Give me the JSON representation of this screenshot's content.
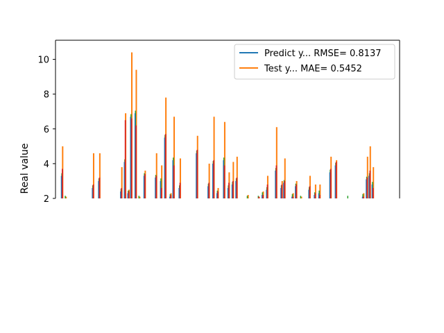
{
  "chart_data": {
    "type": "line",
    "xlabel": "",
    "ylabel": "Real value",
    "ylim": [
      2,
      11.1
    ],
    "yticks": [
      2,
      4,
      6,
      8,
      10
    ],
    "xlim": [
      0,
      100
    ],
    "grid": false,
    "legend_position": "top-right",
    "colors": {
      "predict": "#1f77b4",
      "test": "#ff7f0e",
      "series3": "#2ca02c",
      "series4": "#d62728"
    },
    "legend": [
      {
        "label": "Predict y... RMSE= 0.8137",
        "color": "#1f77b4"
      },
      {
        "label": "Test y... MAE= 0.5452",
        "color": "#ff7f0e"
      }
    ],
    "spikes": [
      {
        "x": 2.0,
        "test": 5.0,
        "predict": 3.3,
        "red": 3.7
      },
      {
        "x": 3.0,
        "test": 2.1,
        "predict": 2.0,
        "red": 2.0
      },
      {
        "x": 11.0,
        "test": 4.6,
        "predict": 2.6,
        "red": 2.8
      },
      {
        "x": 12.8,
        "test": 4.6,
        "predict": 3.0,
        "red": 3.2
      },
      {
        "x": 19.2,
        "test": 3.8,
        "predict": 2.4,
        "red": 2.6
      },
      {
        "x": 20.3,
        "test": 6.9,
        "predict": 4.1,
        "red": 6.5
      },
      {
        "x": 21.3,
        "test": 2.5,
        "predict": 2.3,
        "red": 2.4
      },
      {
        "x": 22.1,
        "test": 10.4,
        "predict": 6.7,
        "red": 6.6
      },
      {
        "x": 23.4,
        "test": 9.4,
        "predict": 6.9,
        "red": 6.2
      },
      {
        "x": 24.4,
        "test": 2.1,
        "predict": 2.0,
        "red": 2.0
      },
      {
        "x": 26.0,
        "test": 3.6,
        "predict": 3.3,
        "red": 3.4
      },
      {
        "x": 29.3,
        "test": 4.6,
        "predict": 3.2,
        "red": 3.3
      },
      {
        "x": 30.8,
        "test": 3.9,
        "predict": 3.0,
        "red": 2.6
      },
      {
        "x": 32.0,
        "test": 7.8,
        "predict": 5.5,
        "red": 5.7
      },
      {
        "x": 33.5,
        "test": 2.3,
        "predict": 2.1,
        "red": 2.2
      },
      {
        "x": 34.4,
        "test": 6.7,
        "predict": 4.2,
        "red": 3.9
      },
      {
        "x": 36.2,
        "test": 4.3,
        "predict": 2.6,
        "red": 2.9
      },
      {
        "x": 41.2,
        "test": 5.6,
        "predict": 4.6,
        "red": 4.8
      },
      {
        "x": 44.6,
        "test": 4.0,
        "predict": 2.7,
        "red": 2.9
      },
      {
        "x": 46.0,
        "test": 6.7,
        "predict": 4.0,
        "red": 4.2
      },
      {
        "x": 47.2,
        "test": 2.6,
        "predict": 2.3,
        "red": 2.4
      },
      {
        "x": 49.1,
        "test": 6.4,
        "predict": 4.2,
        "red": 3.9
      },
      {
        "x": 50.4,
        "test": 3.5,
        "predict": 2.6,
        "red": 2.9
      },
      {
        "x": 51.6,
        "test": 4.1,
        "predict": 2.8,
        "red": 3.0
      },
      {
        "x": 52.7,
        "test": 4.4,
        "predict": 3.0,
        "red": 3.2
      },
      {
        "x": 55.9,
        "test": 2.2,
        "predict": 2.0,
        "red": 2.0
      },
      {
        "x": 59.1,
        "test": 2.1,
        "predict": 2.0,
        "red": 2.1
      },
      {
        "x": 60.3,
        "test": 2.4,
        "predict": 2.2,
        "red": 2.2
      },
      {
        "x": 61.6,
        "test": 3.3,
        "predict": 2.5,
        "red": 2.8
      },
      {
        "x": 64.2,
        "test": 6.1,
        "predict": 3.6,
        "red": 3.9
      },
      {
        "x": 65.8,
        "test": 3.0,
        "predict": 2.6,
        "red": 2.8
      },
      {
        "x": 66.6,
        "test": 4.3,
        "predict": 2.9,
        "red": 3.0
      },
      {
        "x": 69.0,
        "test": 2.3,
        "predict": 2.1,
        "red": 2.1
      },
      {
        "x": 70.0,
        "test": 3.0,
        "predict": 2.7,
        "red": 2.8
      },
      {
        "x": 71.4,
        "test": 2.1,
        "predict": 2.0,
        "red": 2.0
      },
      {
        "x": 73.9,
        "test": 3.3,
        "predict": 2.5,
        "red": 2.7
      },
      {
        "x": 75.5,
        "test": 2.8,
        "predict": 2.2,
        "red": 2.3
      },
      {
        "x": 76.8,
        "test": 2.8,
        "predict": 2.3,
        "red": 2.2
      },
      {
        "x": 80.0,
        "test": 4.4,
        "predict": 3.5,
        "red": 3.7
      },
      {
        "x": 81.6,
        "test": 4.2,
        "predict": 3.9,
        "red": 4.1
      },
      {
        "x": 85.1,
        "test": 2.0,
        "predict": 2.0,
        "red": 2.0
      },
      {
        "x": 89.5,
        "test": 2.3,
        "predict": 2.1,
        "red": 2.1
      },
      {
        "x": 90.6,
        "test": 4.4,
        "predict": 3.1,
        "red": 3.2
      },
      {
        "x": 91.4,
        "test": 5.0,
        "predict": 3.3,
        "red": 3.6
      },
      {
        "x": 92.3,
        "test": 3.8,
        "predict": 2.8,
        "red": 2.6
      }
    ]
  }
}
